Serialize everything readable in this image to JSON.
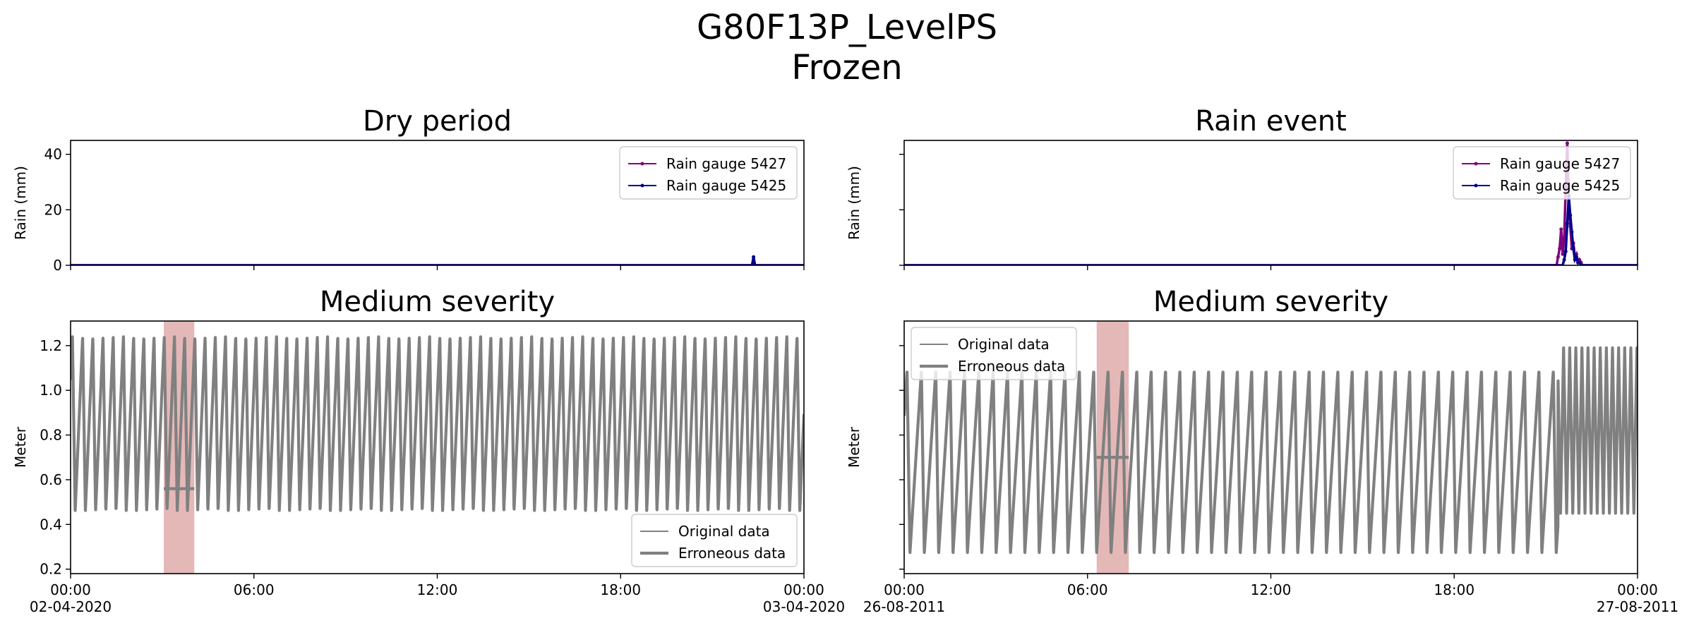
{
  "figure": {
    "title": "G80F13P_LevelPS",
    "subtitle": "Frozen"
  },
  "chart_data": [
    {
      "type": "line",
      "title": "Dry period",
      "xlabel": "",
      "ylabel": "Rain (mm)",
      "ylim": [
        0,
        45
      ],
      "yticks": [
        0,
        20,
        40
      ],
      "xlim_hours": [
        0,
        24
      ],
      "series": [
        {
          "name": "Rain gauge 5427",
          "color": "#800080",
          "marker": "dot",
          "x_hours": [
            0,
            22.3,
            22.35,
            22.4,
            24
          ],
          "values": [
            0,
            0,
            1.5,
            0,
            0
          ]
        },
        {
          "name": "Rain gauge 5425",
          "color": "#00008b",
          "marker": "dot",
          "x_hours": [
            0,
            22.3,
            22.35,
            22.4,
            24
          ],
          "values": [
            0,
            0,
            3,
            0,
            0
          ]
        }
      ],
      "legend": "upper right"
    },
    {
      "type": "line",
      "title": "Rain event",
      "xlabel": "",
      "ylabel": "Rain (mm)",
      "ylim": [
        0,
        45
      ],
      "yticks": [
        0,
        20,
        40
      ],
      "xlim_hours": [
        0,
        24
      ],
      "series": [
        {
          "name": "Rain gauge 5427",
          "color": "#800080",
          "marker": "dot",
          "x_hours": [
            0,
            21.35,
            21.4,
            21.45,
            21.5,
            21.55,
            21.6,
            21.65,
            21.7,
            21.75,
            21.8,
            21.85,
            21.9,
            21.95,
            22.0,
            22.05,
            22.1,
            22.15,
            22.2,
            22.25,
            22.3,
            24
          ],
          "values": [
            0,
            0,
            3,
            6,
            13,
            4,
            10,
            28,
            44,
            24,
            14,
            6,
            8,
            3,
            4,
            1,
            2,
            1,
            0,
            0,
            0,
            0
          ]
        },
        {
          "name": "Rain gauge 5425",
          "color": "#00008b",
          "marker": "dot",
          "x_hours": [
            0,
            21.55,
            21.6,
            21.65,
            21.7,
            21.75,
            21.8,
            21.85,
            21.9,
            21.95,
            22.0,
            22.05,
            22.1,
            22.15,
            22.2,
            24
          ],
          "values": [
            0,
            0,
            2,
            5,
            15,
            25,
            18,
            12,
            6,
            2,
            3,
            1,
            1,
            0,
            0,
            0
          ]
        }
      ],
      "legend": "upper right"
    },
    {
      "type": "line",
      "title": "Medium severity",
      "xlabel": "",
      "ylabel": "Meter",
      "ylim": [
        0.18,
        1.31
      ],
      "yticks": [
        0.2,
        0.4,
        0.6,
        0.8,
        1.0,
        1.2
      ],
      "xlim_hours": [
        0,
        24
      ],
      "xticks": [
        "00:00\n02-04-2020",
        "06:00",
        "12:00",
        "18:00",
        "00:00\n03-04-2020"
      ],
      "pump_cycle": {
        "period_hours": 0.334,
        "rise_fraction": 0.73,
        "max_level": 1.24,
        "min_level": 0.46,
        "start_phase": 0.55
      },
      "anomaly": {
        "type": "frozen",
        "start_hour": 3.05,
        "end_hour": 4.05,
        "frozen_value": 0.56,
        "band_color": "#dca0a0"
      },
      "series": [
        {
          "name": "Original data",
          "color": "#808080",
          "linewidth": "thin"
        },
        {
          "name": "Erroneous data",
          "color": "#808080",
          "linewidth": "thick"
        }
      ],
      "legend": "lower right"
    },
    {
      "type": "line",
      "title": "Medium severity",
      "xlabel": "",
      "ylabel": "Meter",
      "ylim": [
        0.18,
        1.31
      ],
      "yticks": [
        0.2,
        0.4,
        0.6,
        0.8,
        1.0,
        1.2
      ],
      "xlim_hours": [
        0,
        24
      ],
      "xticks": [
        "00:00\n26-08-2011",
        "06:00",
        "12:00",
        "18:00",
        "00:00\n27-08-2011"
      ],
      "pump_cycle": {
        "period_hours": 0.47,
        "rise_fraction": 0.8,
        "max_level": 1.09,
        "min_level": 0.27,
        "start_phase": 0.6,
        "rain_from_hour": 21.4,
        "rain_period_hours": 0.2,
        "rain_max_level": 1.19,
        "rain_min_level": 0.45
      },
      "anomaly": {
        "type": "frozen",
        "start_hour": 6.3,
        "end_hour": 7.35,
        "frozen_value": 0.7,
        "band_color": "#dca0a0"
      },
      "series": [
        {
          "name": "Original data",
          "color": "#808080",
          "linewidth": "thin"
        },
        {
          "name": "Erroneous data",
          "color": "#808080",
          "linewidth": "thick"
        }
      ],
      "legend": "upper left"
    }
  ]
}
